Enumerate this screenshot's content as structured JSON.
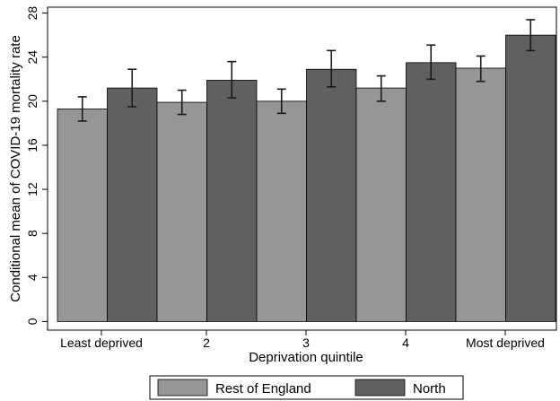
{
  "chart_data": {
    "type": "bar",
    "title": "",
    "xlabel": "Deprivation quintile",
    "ylabel": "Conditional mean of COVID-19 mortality rate",
    "ylim": [
      0,
      28
    ],
    "yticks": [
      0,
      4,
      8,
      12,
      16,
      20,
      24,
      28
    ],
    "categories": [
      "Least deprived",
      "2",
      "3",
      "4",
      "Most deprived"
    ],
    "series": [
      {
        "name": "Rest of England",
        "color": "#969696",
        "values": [
          19.3,
          19.9,
          20.0,
          21.2,
          23.0
        ],
        "ci_low": [
          18.2,
          18.8,
          18.9,
          20.0,
          21.8
        ],
        "ci_high": [
          20.4,
          21.0,
          21.1,
          22.3,
          24.1
        ]
      },
      {
        "name": "North",
        "color": "#606060",
        "values": [
          21.2,
          21.9,
          22.9,
          23.5,
          26.0
        ],
        "ci_low": [
          19.5,
          20.3,
          21.3,
          22.0,
          24.6
        ],
        "ci_high": [
          22.9,
          23.6,
          24.6,
          25.1,
          27.4
        ]
      }
    ],
    "grid": false,
    "legend_position": "bottom"
  }
}
